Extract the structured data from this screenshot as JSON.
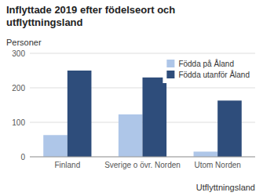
{
  "chart_data": {
    "type": "bar",
    "title": "Inflyttade 2019 efter födelseort och\nutflyttningsland",
    "ylabel": "Personer",
    "xlabel": "Utflyttningsland",
    "categories": [
      "Finland",
      "Sverige o övr. Norden",
      "Utom Norden"
    ],
    "series": [
      {
        "name": "Födda på Åland",
        "color": "#aec6e8",
        "values": [
          63,
          123,
          15
        ]
      },
      {
        "name": "Födda utanför Åland",
        "color": "#2e4d7b",
        "values": [
          250,
          230,
          163
        ]
      }
    ],
    "ylim": [
      0,
      300
    ],
    "yticks": [
      0,
      100,
      200,
      300
    ],
    "grid": true,
    "legend": "upper right"
  }
}
